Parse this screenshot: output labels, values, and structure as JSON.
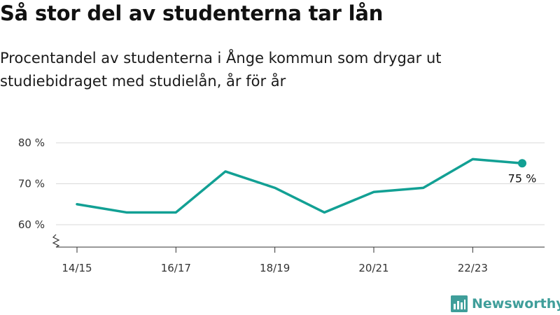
{
  "title": "Så stor del av studenterna tar lån",
  "subtitle": "Procentandel av studenterna i Ånge kommun som drygar ut studiebidraget med studielån, år för år",
  "brand": {
    "name": "Newsworthy",
    "color": "#3f9e9a"
  },
  "chart_data": {
    "type": "line",
    "title": "Så stor del av studenterna tar lån",
    "subtitle": "Procentandel av studenterna i Ånge kommun som drygar ut studiebidraget med studielån, år för år",
    "x": [
      "14/15",
      "15/16",
      "16/17",
      "17/18",
      "18/19",
      "19/20",
      "20/21",
      "21/22",
      "22/23",
      "23/24"
    ],
    "x_tick_labels": [
      "14/15",
      "16/17",
      "18/19",
      "20/21",
      "22/23"
    ],
    "series": [
      {
        "values": [
          65,
          63,
          63,
          73,
          69,
          63,
          68,
          69,
          76,
          75
        ],
        "color": "#12a094"
      }
    ],
    "ylim": [
      55,
      80
    ],
    "y_ticks": [
      60,
      70,
      80
    ],
    "y_tick_labels": [
      "60 %",
      "70 %",
      "80 %"
    ],
    "y_axis_break": true,
    "grid": true,
    "end_label": "75 %"
  }
}
